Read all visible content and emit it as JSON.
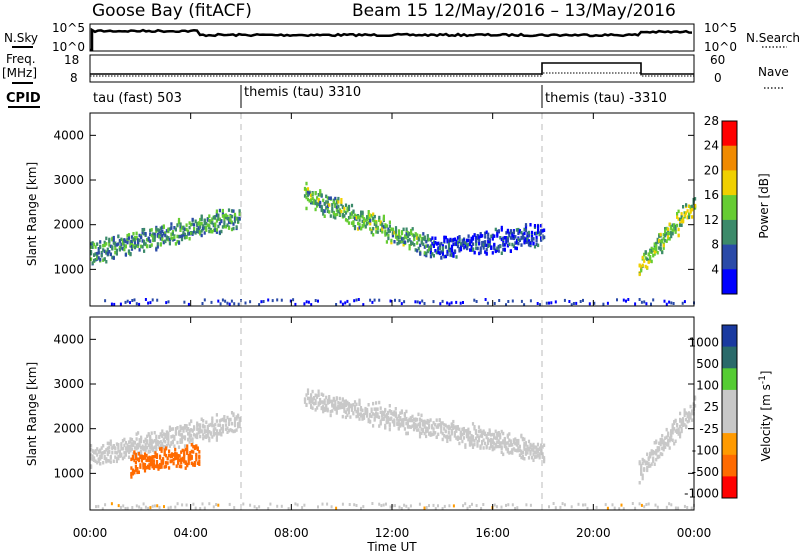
{
  "header": {
    "site": "Goose Bay (fitACF)",
    "beam_and_dates": "Beam 15  12/May/2016 – 13/May/2016"
  },
  "labels": {
    "nsky": "N.Sky",
    "nsearch": "N.Search",
    "freq": "Freq.",
    "freq_unit": "[MHz]",
    "nave": "Nave",
    "cpid": "CPID",
    "xlabel": "Time UT",
    "ylabel": "Slant Range [km]",
    "power_label": "Power [dB]",
    "velocity_label": "Velocity  [m s",
    "velocity_exp": "-1",
    "noise_left_ticks": [
      "10^5",
      "10^0"
    ],
    "noise_right_ticks": [
      "10^5",
      "10^0"
    ],
    "freq_left_ticks": [
      "18",
      "8"
    ],
    "freq_right_ticks": [
      "60",
      "0"
    ]
  },
  "cpid_segments": [
    {
      "label": "tau (fast) 503",
      "start": 0
    },
    {
      "label": "themis (tau) 3310",
      "start": 6
    },
    {
      "label": "themis (tau) -3310",
      "start": 18
    }
  ],
  "chart_data": [
    {
      "type": "heatmap",
      "name": "Power",
      "x": {
        "label": "Time UT",
        "ticks": [
          "00:00",
          "04:00",
          "08:00",
          "12:00",
          "16:00",
          "20:00",
          "00:00"
        ],
        "range_hours": [
          0,
          24
        ]
      },
      "y": {
        "label": "Slant Range [km]",
        "ticks": [
          1000,
          2000,
          3000,
          4000
        ],
        "range_km": [
          180,
          4500
        ]
      },
      "colorbar": {
        "label": "Power [dB]",
        "ticks": [
          4,
          8,
          12,
          16,
          20,
          24,
          28
        ],
        "colors": [
          "#0000ff",
          "#2a4aa8",
          "#3c8a6a",
          "#66cc33",
          "#f0d000",
          "#f08a00",
          "#ff0000"
        ]
      },
      "features": [
        {
          "t_start": 0.0,
          "t_end": 5.9,
          "r_start": 1400,
          "r_end": 2200,
          "level_db": 14
        },
        {
          "t_start": 8.5,
          "t_end": 13.5,
          "r_start": 2700,
          "r_end": 1500,
          "level_db": 16
        },
        {
          "t_start": 13.5,
          "t_end": 18.0,
          "r_start": 1500,
          "r_end": 1800,
          "level_db": 9
        },
        {
          "t_start": 21.8,
          "t_end": 24.0,
          "r_start": 1100,
          "r_end": 2500,
          "level_db": 18
        }
      ]
    },
    {
      "type": "heatmap",
      "name": "Velocity",
      "x": {
        "label": "Time UT",
        "ticks": [
          "00:00",
          "04:00",
          "08:00",
          "12:00",
          "16:00",
          "20:00",
          "00:00"
        ],
        "range_hours": [
          0,
          24
        ]
      },
      "y": {
        "label": "Slant Range [km]",
        "ticks": [
          1000,
          2000,
          3000,
          4000
        ],
        "range_km": [
          180,
          4500
        ]
      },
      "colorbar": {
        "label": "Velocity [m s-1]",
        "ticks": [
          1000,
          500,
          100,
          25,
          -25,
          -100,
          -500,
          -1000
        ],
        "colors": [
          "#1a3aa0",
          "#2a6a6a",
          "#55cc33",
          "#c8c8c8",
          "#c8c8c8",
          "#ff9a00",
          "#ff6a00",
          "#ff0000"
        ]
      },
      "features": [
        {
          "t_start": 0.0,
          "t_end": 5.9,
          "r_start": 1400,
          "r_end": 2200,
          "level_ms": 0
        },
        {
          "t_start": 1.6,
          "t_end": 4.3,
          "r_start": 1250,
          "r_end": 1450,
          "level_ms": -300
        },
        {
          "t_start": 8.5,
          "t_end": 18.0,
          "r_start": 2700,
          "r_end": 1500,
          "level_ms": 0
        },
        {
          "t_start": 21.8,
          "t_end": 24.0,
          "r_start": 1100,
          "r_end": 2500,
          "level_ms": 0
        }
      ]
    }
  ]
}
